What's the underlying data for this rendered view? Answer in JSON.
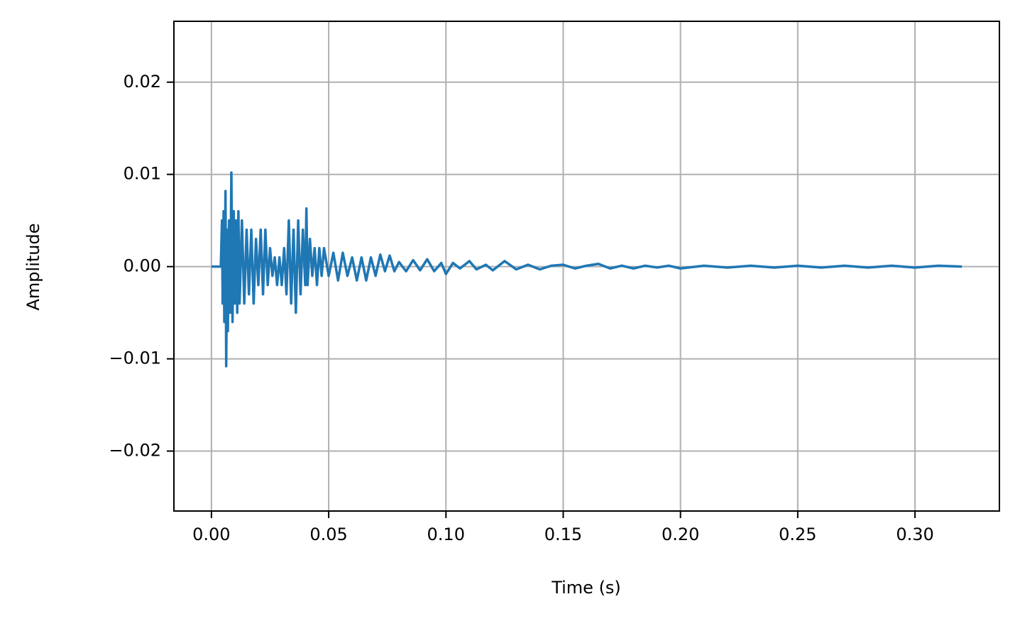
{
  "chart_data": {
    "type": "line",
    "xlabel": "Time (s)",
    "ylabel": "Amplitude",
    "x": [
      0,
      0.004,
      0.0045,
      0.0048,
      0.0052,
      0.0055,
      0.006,
      0.0063,
      0.0067,
      0.007,
      0.0075,
      0.008,
      0.0085,
      0.009,
      0.0095,
      0.01,
      0.0105,
      0.011,
      0.0115,
      0.012,
      0.013,
      0.014,
      0.015,
      0.016,
      0.017,
      0.018,
      0.019,
      0.02,
      0.021,
      0.022,
      0.023,
      0.024,
      0.025,
      0.026,
      0.027,
      0.028,
      0.029,
      0.03,
      0.031,
      0.032,
      0.033,
      0.034,
      0.035,
      0.036,
      0.037,
      0.038,
      0.039,
      0.04,
      0.0405,
      0.041,
      0.042,
      0.043,
      0.044,
      0.045,
      0.046,
      0.047,
      0.048,
      0.05,
      0.052,
      0.054,
      0.056,
      0.058,
      0.06,
      0.062,
      0.064,
      0.066,
      0.068,
      0.07,
      0.072,
      0.074,
      0.076,
      0.078,
      0.08,
      0.083,
      0.086,
      0.089,
      0.092,
      0.095,
      0.098,
      0.1,
      0.103,
      0.106,
      0.11,
      0.113,
      0.117,
      0.12,
      0.125,
      0.13,
      0.135,
      0.14,
      0.145,
      0.15,
      0.155,
      0.16,
      0.165,
      0.17,
      0.175,
      0.18,
      0.185,
      0.19,
      0.195,
      0.2,
      0.21,
      0.22,
      0.23,
      0.24,
      0.25,
      0.26,
      0.27,
      0.28,
      0.29,
      0.3,
      0.31,
      0.32
    ],
    "values": [
      0,
      0,
      0.005,
      -0.004,
      0.006,
      -0.006,
      0.0082,
      -0.0108,
      0.004,
      -0.007,
      0.005,
      -0.005,
      0.0102,
      -0.006,
      0.006,
      -0.004,
      0.005,
      -0.005,
      0.006,
      -0.004,
      0.005,
      -0.004,
      0.004,
      -0.003,
      0.004,
      -0.004,
      0.003,
      -0.002,
      0.004,
      -0.003,
      0.004,
      -0.002,
      0.002,
      -0.001,
      0.001,
      -0.002,
      0.001,
      -0.002,
      0.002,
      -0.003,
      0.005,
      -0.004,
      0.004,
      -0.005,
      0.005,
      -0.003,
      0.004,
      -0.002,
      0.0063,
      -0.002,
      0.003,
      -0.001,
      0.002,
      -0.002,
      0.002,
      -0.001,
      0.002,
      -0.001,
      0.0015,
      -0.0015,
      0.0015,
      -0.001,
      0.001,
      -0.0015,
      0.001,
      -0.0015,
      0.001,
      -0.001,
      0.0013,
      -0.0005,
      0.0012,
      -0.0005,
      0.0005,
      -0.0005,
      0.0007,
      -0.0004,
      0.0008,
      -0.0005,
      0.0004,
      -0.0008,
      0.0004,
      -0.0002,
      0.0006,
      -0.0003,
      0.0002,
      -0.0004,
      0.0006,
      -0.0003,
      0.0002,
      -0.0003,
      0.0001,
      0.0002,
      -0.0002,
      0.0001,
      0.0003,
      -0.0002,
      0.0001,
      -0.0002,
      0.0001,
      -0.0001,
      0.0001,
      -0.0002,
      0.0001,
      -0.0001,
      0.0001,
      -0.0001,
      0.0001,
      -0.0001,
      0.0001,
      -0.0001,
      0.0001,
      -0.0001,
      0.0001,
      0
    ],
    "color": "#1f77b4",
    "xlim": [
      -0.016,
      0.336
    ],
    "xticks": [
      {
        "value": 0,
        "label": "0.00"
      },
      {
        "value": 0.05,
        "label": "0.05"
      },
      {
        "value": 0.1,
        "label": "0.10"
      },
      {
        "value": 0.15,
        "label": "0.15"
      },
      {
        "value": 0.2,
        "label": "0.20"
      },
      {
        "value": 0.25,
        "label": "0.25"
      },
      {
        "value": 0.3,
        "label": "0.30"
      }
    ],
    "ylim": [
      -0.0265,
      0.0266
    ],
    "yticks": [
      {
        "value": -0.02,
        "label": "−0.02"
      },
      {
        "value": -0.01,
        "label": "−0.01"
      },
      {
        "value": 0,
        "label": "0.00"
      },
      0.01,
      0.02
    ],
    "grid": true
  }
}
